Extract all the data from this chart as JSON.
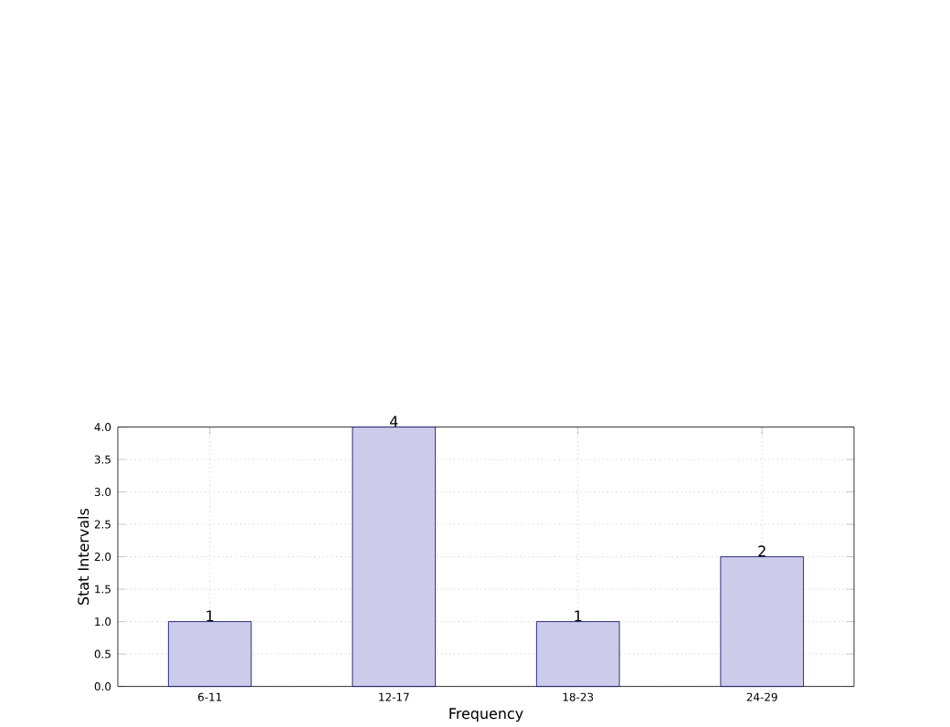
{
  "chart_data": {
    "type": "bar",
    "xlabel": "Frequency",
    "ylabel": "Stat Intervals",
    "categories": [
      "6-11",
      "12-17",
      "18-23",
      "24-29"
    ],
    "values": [
      1,
      4,
      1,
      2
    ],
    "color": "#ccccea",
    "data_labels": true,
    "grid": true,
    "ylim": [
      0,
      4
    ],
    "yticks": [
      {
        "value": 0,
        "label": "0.0"
      },
      {
        "value": 0.5,
        "label": "0.5"
      },
      {
        "value": 1,
        "label": "1.0"
      },
      {
        "value": 1.5,
        "label": "1.5"
      },
      {
        "value": 2,
        "label": "2.0"
      },
      {
        "value": 2.5,
        "label": "2.5"
      },
      {
        "value": 3,
        "label": "3.0"
      },
      {
        "value": 3.5,
        "label": "3.5"
      },
      {
        "value": 4,
        "label": "4.0"
      }
    ]
  }
}
